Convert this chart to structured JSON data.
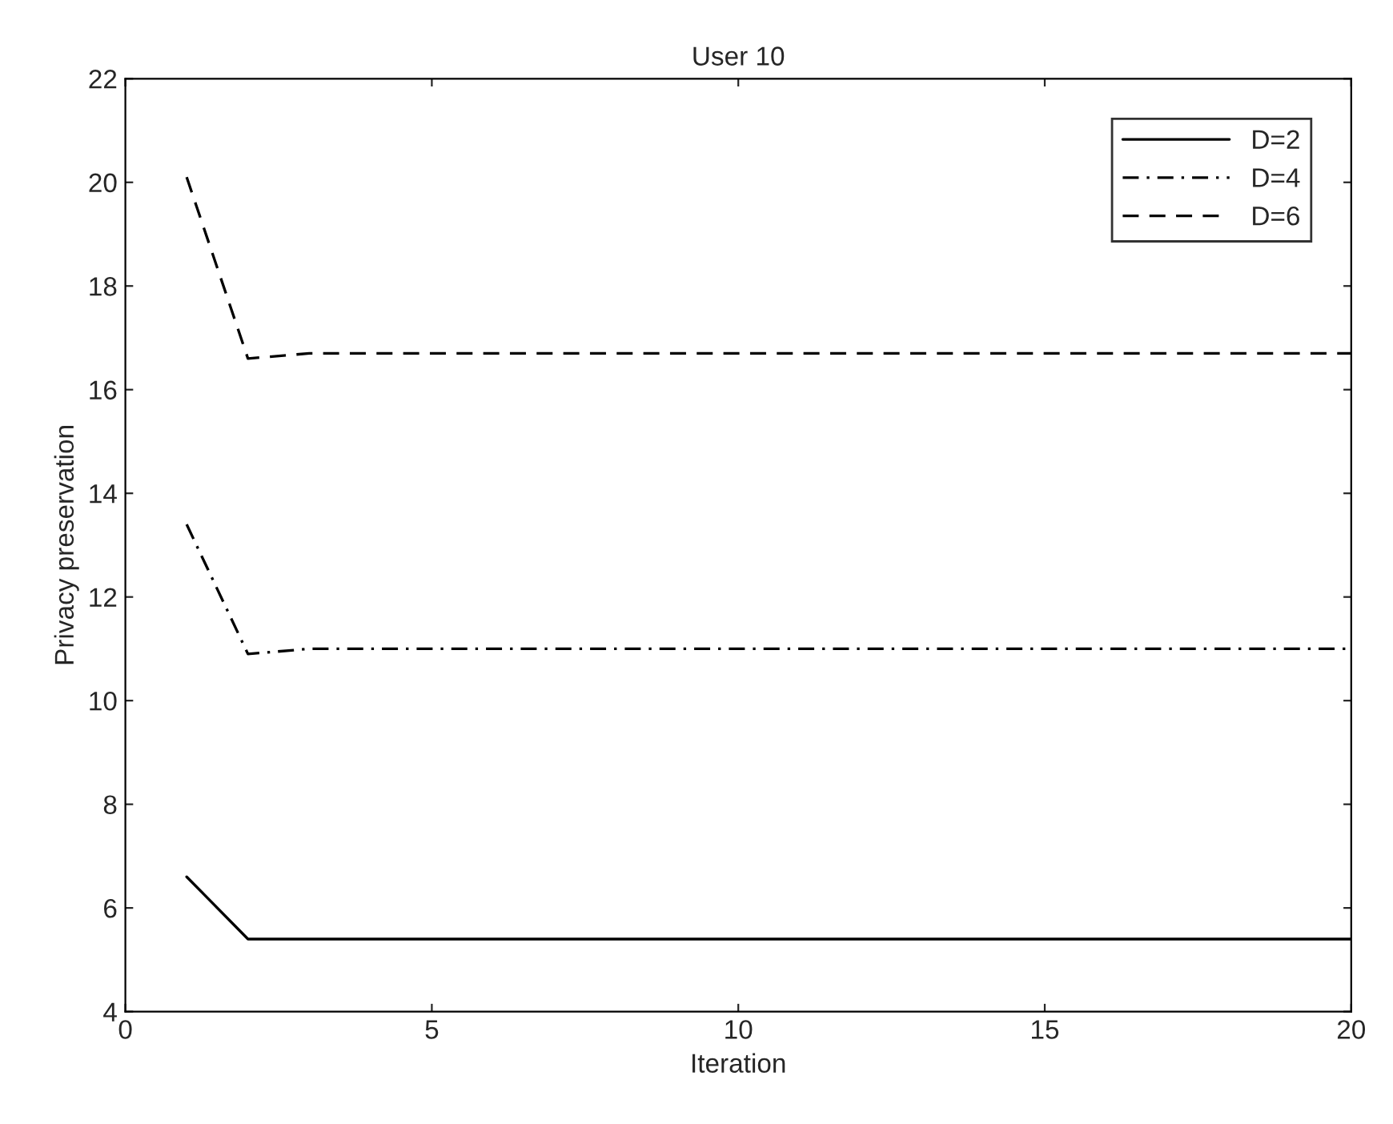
{
  "chart_data": {
    "type": "line",
    "title": "User 10",
    "xlabel": "Iteration",
    "ylabel": "Privacy preservation",
    "x": [
      1,
      2,
      3,
      4,
      5,
      6,
      7,
      8,
      9,
      10,
      11,
      12,
      13,
      14,
      15,
      16,
      17,
      18,
      19,
      20
    ],
    "series": [
      {
        "name": "D=2",
        "color": "#000000",
        "line_style": "solid",
        "values": [
          6.6,
          5.4,
          5.4,
          5.4,
          5.4,
          5.4,
          5.4,
          5.4,
          5.4,
          5.4,
          5.4,
          5.4,
          5.4,
          5.4,
          5.4,
          5.4,
          5.4,
          5.4,
          5.4,
          5.4
        ]
      },
      {
        "name": "D=4",
        "color": "#000000",
        "line_style": "dashdot",
        "values": [
          13.4,
          10.9,
          11.0,
          11.0,
          11.0,
          11.0,
          11.0,
          11.0,
          11.0,
          11.0,
          11.0,
          11.0,
          11.0,
          11.0,
          11.0,
          11.0,
          11.0,
          11.0,
          11.0,
          11.0
        ]
      },
      {
        "name": "D=6",
        "color": "#000000",
        "line_style": "dashed",
        "values": [
          20.1,
          16.6,
          16.7,
          16.7,
          16.7,
          16.7,
          16.7,
          16.7,
          16.7,
          16.7,
          16.7,
          16.7,
          16.7,
          16.7,
          16.7,
          16.7,
          16.7,
          16.7,
          16.7,
          16.7
        ]
      }
    ],
    "xlim": [
      0,
      20
    ],
    "xticks": [
      0,
      5,
      10,
      15,
      20
    ],
    "ylim": [
      4,
      22
    ],
    "yticks": [
      4,
      6,
      8,
      10,
      12,
      14,
      16,
      18,
      20,
      22
    ],
    "grid": false,
    "legend": "top right",
    "marker": "none"
  }
}
